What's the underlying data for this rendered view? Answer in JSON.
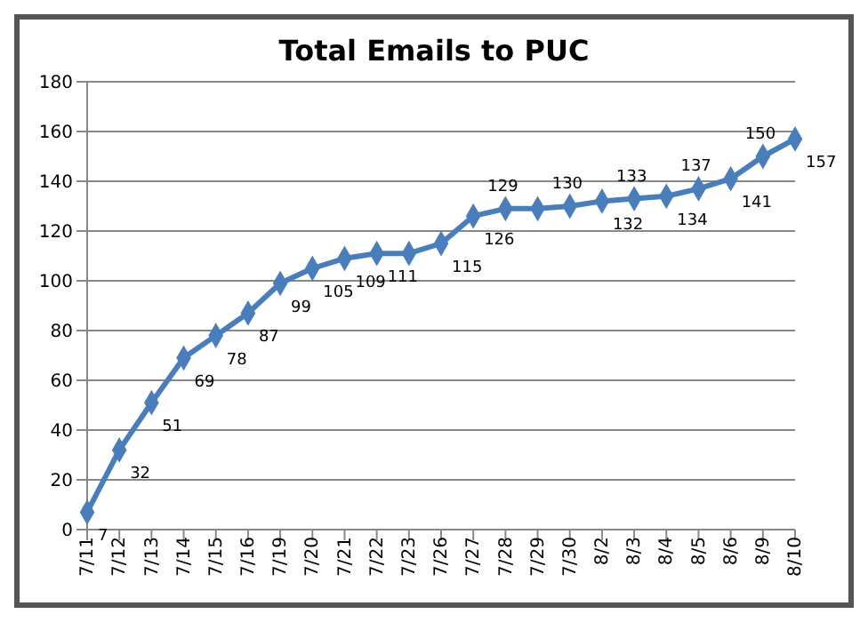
{
  "chart_data": {
    "type": "line",
    "title": "Total Emails to PUC",
    "categories": [
      "7/11",
      "7/12",
      "7/13",
      "7/14",
      "7/15",
      "7/16",
      "7/19",
      "7/20",
      "7/21",
      "7/22",
      "7/23",
      "7/26",
      "7/27",
      "7/28",
      "7/29",
      "7/30",
      "8/2",
      "8/3",
      "8/4",
      "8/5",
      "8/6",
      "8/9",
      "8/10"
    ],
    "values": [
      7,
      32,
      51,
      69,
      78,
      87,
      99,
      105,
      109,
      111,
      111,
      115,
      126,
      129,
      129,
      130,
      132,
      133,
      134,
      137,
      141,
      150,
      157
    ],
    "value_labels": [
      "7",
      "32",
      "51",
      "69",
      "78",
      "87",
      "99",
      "105",
      "109",
      "111",
      null,
      "115",
      "126",
      "129",
      null,
      "130",
      "132",
      "133",
      "134",
      "137",
      "141",
      "150",
      "157"
    ],
    "color": "#4a7ebb",
    "ylim": [
      0,
      180
    ],
    "yticks": [
      0,
      20,
      40,
      60,
      80,
      100,
      120,
      140,
      160,
      180
    ],
    "grid": "y",
    "marker": "diamond",
    "line_style": "solid"
  }
}
